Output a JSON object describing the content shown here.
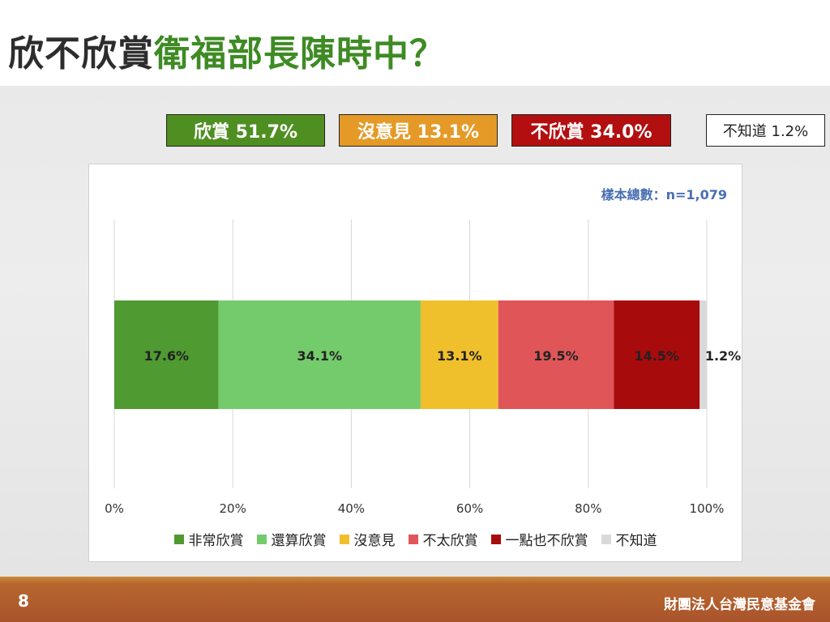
{
  "title": {
    "part1": "欣不欣賞",
    "part2": "衛福部長陳時中？"
  },
  "summary": {
    "approve": "欣賞 51.7%",
    "neutral": "沒意見 13.1%",
    "disapprove": "不欣賞 34.0%",
    "unknown": "不知道 1.2%"
  },
  "sample_label": "樣本總數：n=1,079",
  "chart_data": {
    "type": "bar",
    "orientation": "horizontal-stacked",
    "xlim": [
      0,
      100
    ],
    "x_ticks": [
      "0%",
      "20%",
      "40%",
      "60%",
      "80%",
      "100%"
    ],
    "grid": true,
    "legend_position": "bottom",
    "series": [
      {
        "name": "非常欣賞",
        "value": 17.6,
        "label": "17.6%",
        "color": "#4f9a31"
      },
      {
        "name": "還算欣賞",
        "value": 34.1,
        "label": "34.1%",
        "color": "#74cb6c"
      },
      {
        "name": "沒意見",
        "value": 13.1,
        "label": "13.1%",
        "color": "#f0c02c"
      },
      {
        "name": "不太欣賞",
        "value": 19.5,
        "label": "19.5%",
        "color": "#e05658"
      },
      {
        "name": "一點也不欣賞",
        "value": 14.5,
        "label": "14.5%",
        "color": "#a80b0c"
      },
      {
        "name": "不知道",
        "value": 1.2,
        "label": "1.2%",
        "color": "#d9d9d9"
      }
    ]
  },
  "footer": {
    "page_number": "8",
    "organization": "財團法人台灣民意基金會"
  }
}
